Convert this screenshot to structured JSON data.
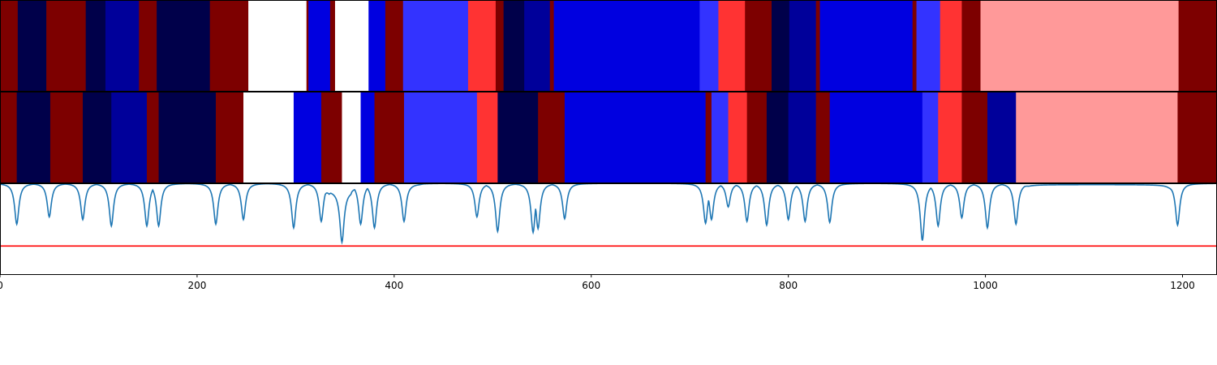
{
  "chart_data": [
    {
      "type": "heatmap",
      "title": "",
      "xlim": [
        0,
        1235
      ],
      "colors": {
        "white": "#ffffff",
        "maroon": "#7d0000",
        "navy": "#00004a",
        "dark_blue": "#00009a",
        "blue": "#0000e0",
        "light_blue": "#3333ff",
        "red": "#ff3333",
        "pink": "#ff9999"
      },
      "segments": [
        {
          "start": 0,
          "end": 18,
          "color": "maroon"
        },
        {
          "start": 18,
          "end": 47,
          "color": "navy"
        },
        {
          "start": 47,
          "end": 87,
          "color": "maroon"
        },
        {
          "start": 87,
          "end": 107,
          "color": "navy"
        },
        {
          "start": 107,
          "end": 141,
          "color": "dark_blue"
        },
        {
          "start": 141,
          "end": 159,
          "color": "maroon"
        },
        {
          "start": 159,
          "end": 213,
          "color": "navy"
        },
        {
          "start": 213,
          "end": 252,
          "color": "maroon"
        },
        {
          "start": 252,
          "end": 311,
          "color": "white"
        },
        {
          "start": 311,
          "end": 313,
          "color": "maroon"
        },
        {
          "start": 313,
          "end": 335,
          "color": "blue"
        },
        {
          "start": 335,
          "end": 340,
          "color": "maroon"
        },
        {
          "start": 340,
          "end": 374,
          "color": "white"
        },
        {
          "start": 374,
          "end": 391,
          "color": "blue"
        },
        {
          "start": 391,
          "end": 409,
          "color": "maroon"
        },
        {
          "start": 409,
          "end": 475,
          "color": "light_blue"
        },
        {
          "start": 475,
          "end": 503,
          "color": "red"
        },
        {
          "start": 503,
          "end": 511,
          "color": "maroon"
        },
        {
          "start": 511,
          "end": 532,
          "color": "navy"
        },
        {
          "start": 532,
          "end": 558,
          "color": "dark_blue"
        },
        {
          "start": 558,
          "end": 562,
          "color": "maroon"
        },
        {
          "start": 562,
          "end": 710,
          "color": "blue"
        },
        {
          "start": 710,
          "end": 729,
          "color": "light_blue"
        },
        {
          "start": 729,
          "end": 756,
          "color": "red"
        },
        {
          "start": 756,
          "end": 783,
          "color": "maroon"
        },
        {
          "start": 783,
          "end": 801,
          "color": "navy"
        },
        {
          "start": 801,
          "end": 828,
          "color": "dark_blue"
        },
        {
          "start": 828,
          "end": 832,
          "color": "maroon"
        },
        {
          "start": 832,
          "end": 926,
          "color": "blue"
        },
        {
          "start": 926,
          "end": 930,
          "color": "maroon"
        },
        {
          "start": 930,
          "end": 954,
          "color": "light_blue"
        },
        {
          "start": 954,
          "end": 976,
          "color": "red"
        },
        {
          "start": 976,
          "end": 995,
          "color": "maroon"
        },
        {
          "start": 995,
          "end": 1196,
          "color": "pink"
        },
        {
          "start": 1196,
          "end": 1235,
          "color": "maroon"
        }
      ]
    },
    {
      "type": "heatmap",
      "title": "",
      "xlim": [
        0,
        1235
      ],
      "segments": [
        {
          "start": 0,
          "end": 17,
          "color": "maroon"
        },
        {
          "start": 17,
          "end": 51,
          "color": "navy"
        },
        {
          "start": 51,
          "end": 84,
          "color": "maroon"
        },
        {
          "start": 84,
          "end": 113,
          "color": "navy"
        },
        {
          "start": 113,
          "end": 149,
          "color": "dark_blue"
        },
        {
          "start": 149,
          "end": 161,
          "color": "maroon"
        },
        {
          "start": 161,
          "end": 219,
          "color": "navy"
        },
        {
          "start": 219,
          "end": 247,
          "color": "maroon"
        },
        {
          "start": 247,
          "end": 298,
          "color": "white"
        },
        {
          "start": 298,
          "end": 326,
          "color": "blue"
        },
        {
          "start": 326,
          "end": 347,
          "color": "maroon"
        },
        {
          "start": 347,
          "end": 366,
          "color": "white"
        },
        {
          "start": 366,
          "end": 380,
          "color": "blue"
        },
        {
          "start": 380,
          "end": 410,
          "color": "maroon"
        },
        {
          "start": 410,
          "end": 484,
          "color": "light_blue"
        },
        {
          "start": 484,
          "end": 505,
          "color": "red"
        },
        {
          "start": 505,
          "end": 546,
          "color": "navy"
        },
        {
          "start": 546,
          "end": 573,
          "color": "maroon"
        },
        {
          "start": 573,
          "end": 716,
          "color": "blue"
        },
        {
          "start": 716,
          "end": 722,
          "color": "maroon"
        },
        {
          "start": 722,
          "end": 739,
          "color": "light_blue"
        },
        {
          "start": 739,
          "end": 758,
          "color": "red"
        },
        {
          "start": 758,
          "end": 778,
          "color": "maroon"
        },
        {
          "start": 778,
          "end": 800,
          "color": "navy"
        },
        {
          "start": 800,
          "end": 828,
          "color": "dark_blue"
        },
        {
          "start": 828,
          "end": 842,
          "color": "maroon"
        },
        {
          "start": 842,
          "end": 936,
          "color": "blue"
        },
        {
          "start": 936,
          "end": 952,
          "color": "light_blue"
        },
        {
          "start": 952,
          "end": 976,
          "color": "red"
        },
        {
          "start": 976,
          "end": 1002,
          "color": "maroon"
        },
        {
          "start": 1002,
          "end": 1031,
          "color": "dark_blue"
        },
        {
          "start": 1031,
          "end": 1195,
          "color": "pink"
        },
        {
          "start": 1195,
          "end": 1235,
          "color": "maroon"
        }
      ]
    },
    {
      "type": "line",
      "title": "",
      "xlabel": "",
      "ylabel": "",
      "xlim": [
        0,
        1235
      ],
      "ylim": [
        0,
        1
      ],
      "grid": false,
      "x_ticks": [
        0,
        200,
        400,
        600,
        800,
        1000,
        1200
      ],
      "x_tick_labels": [
        "0",
        "200",
        "400",
        "600",
        "800",
        "1000",
        "1200"
      ],
      "line_color": "#1f77b4",
      "baseline": 1.0,
      "dips": [
        {
          "x": 17,
          "y": 0.55
        },
        {
          "x": 50,
          "y": 0.63
        },
        {
          "x": 84,
          "y": 0.6
        },
        {
          "x": 113,
          "y": 0.53
        },
        {
          "x": 149,
          "y": 0.53
        },
        {
          "x": 161,
          "y": 0.53
        },
        {
          "x": 219,
          "y": 0.55
        },
        {
          "x": 247,
          "y": 0.6
        },
        {
          "x": 298,
          "y": 0.51
        },
        {
          "x": 326,
          "y": 0.58
        },
        {
          "x": 347,
          "y": 0.43
        },
        {
          "x": 366,
          "y": 0.55
        },
        {
          "x": 380,
          "y": 0.51
        },
        {
          "x": 410,
          "y": 0.58
        },
        {
          "x": 484,
          "y": 0.63
        },
        {
          "x": 505,
          "y": 0.47
        },
        {
          "x": 541,
          "y": 0.46
        },
        {
          "x": 546,
          "y": 0.5
        },
        {
          "x": 573,
          "y": 0.61
        },
        {
          "x": 716,
          "y": 0.56
        },
        {
          "x": 722,
          "y": 0.6
        },
        {
          "x": 739,
          "y": 0.74
        },
        {
          "x": 758,
          "y": 0.58
        },
        {
          "x": 778,
          "y": 0.54
        },
        {
          "x": 800,
          "y": 0.6
        },
        {
          "x": 817,
          "y": 0.58
        },
        {
          "x": 842,
          "y": 0.57
        },
        {
          "x": 936,
          "y": 0.37
        },
        {
          "x": 952,
          "y": 0.53
        },
        {
          "x": 976,
          "y": 0.62
        },
        {
          "x": 1002,
          "y": 0.51
        },
        {
          "x": 1031,
          "y": 0.55
        },
        {
          "x": 1195,
          "y": 0.54
        }
      ],
      "plateaus": [
        {
          "start": 330,
          "end": 360,
          "y": 0.92
        },
        {
          "start": 413,
          "end": 430,
          "y": 0.995
        },
        {
          "start": 1040,
          "end": 1190,
          "y": 0.985
        }
      ],
      "threshold": {
        "y": 0.31,
        "color": "#ff0000"
      }
    }
  ]
}
